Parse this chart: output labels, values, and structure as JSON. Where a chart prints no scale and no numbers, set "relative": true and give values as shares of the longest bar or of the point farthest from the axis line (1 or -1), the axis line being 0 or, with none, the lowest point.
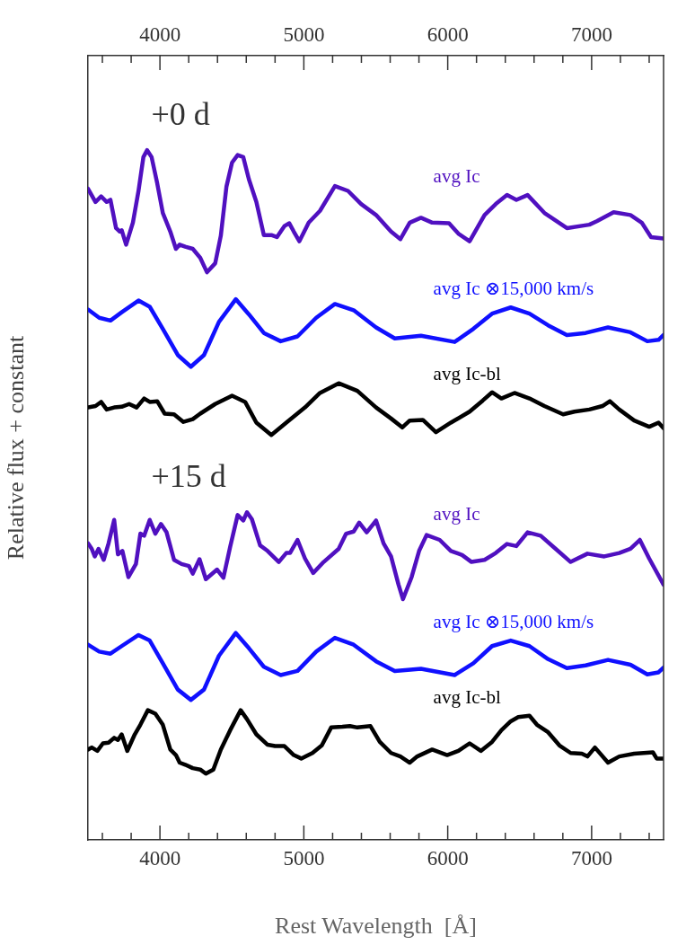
{
  "chart_data": {
    "type": "line",
    "relative": true,
    "xlabel": "Rest Wavelength  [Å]",
    "ylabel": "Relative flux + constant",
    "xlim": [
      3500,
      7500
    ],
    "xticks": [
      {
        "value": 3600,
        "label": null
      },
      {
        "value": 3800,
        "label": null
      },
      4000,
      {
        "value": 4200,
        "label": null
      },
      {
        "value": 4400,
        "label": null
      },
      {
        "value": 4600,
        "label": null
      },
      {
        "value": 4800,
        "label": null
      },
      5000,
      {
        "value": 5200,
        "label": null
      },
      {
        "value": 5400,
        "label": null
      },
      {
        "value": 5600,
        "label": null
      },
      {
        "value": 5800,
        "label": null
      },
      6000,
      {
        "value": 6200,
        "label": null
      },
      {
        "value": 6400,
        "label": null
      },
      {
        "value": 6600,
        "label": null
      },
      {
        "value": 6800,
        "label": null
      },
      7000,
      {
        "value": 7200,
        "label": null
      },
      {
        "value": 7400,
        "label": null
      }
    ],
    "x2lim": [
      3500,
      7500
    ],
    "x2ticks": [
      {
        "value": 3600,
        "label": null
      },
      {
        "value": 3800,
        "label": null
      },
      4000,
      {
        "value": 4200,
        "label": null
      },
      {
        "value": 4400,
        "label": null
      },
      {
        "value": 4600,
        "label": null
      },
      {
        "value": 4800,
        "label": null
      },
      5000,
      {
        "value": 5200,
        "label": null
      },
      {
        "value": 5400,
        "label": null
      },
      {
        "value": 5600,
        "label": null
      },
      {
        "value": 5800,
        "label": null
      },
      6000,
      {
        "value": 6200,
        "label": null
      },
      {
        "value": 6400,
        "label": null
      },
      {
        "value": 6600,
        "label": null
      },
      {
        "value": 6800,
        "label": null
      },
      7000,
      {
        "value": 7200,
        "label": null
      },
      {
        "value": 7400,
        "label": null
      }
    ],
    "annotations": [
      "+0 d",
      "+15 d"
    ],
    "series": [
      {
        "name": "avg Ic",
        "color": "#5010c0",
        "x": [
          3500,
          3552,
          3591,
          3630,
          3656,
          3695,
          3721,
          3734,
          3765,
          3812,
          3851,
          3885,
          3911,
          3942,
          3981,
          4020,
          4072,
          4111,
          4137,
          4176,
          4228,
          4280,
          4327,
          4384,
          4423,
          4462,
          4501,
          4540,
          4579,
          4618,
          4670,
          4722,
          4774,
          4813,
          4865,
          4899,
          4930,
          4969,
          5034,
          5112,
          5216,
          5307,
          5398,
          5502,
          5606,
          5671,
          5736,
          5814,
          5892,
          6009,
          6074,
          6152,
          6256,
          6334,
          6412,
          6477,
          6555,
          6672,
          6828,
          6984,
          7036,
          7153,
          7270,
          7348,
          7413,
          7500
        ],
        "values": [
          0.944,
          0.925,
          0.933,
          0.925,
          0.928,
          0.887,
          0.882,
          0.884,
          0.863,
          0.895,
          0.941,
          0.99,
          1.0,
          0.99,
          0.952,
          0.909,
          0.882,
          0.857,
          0.863,
          0.86,
          0.857,
          0.844,
          0.823,
          0.836,
          0.876,
          0.947,
          0.982,
          0.993,
          0.99,
          0.958,
          0.925,
          0.877,
          0.877,
          0.874,
          0.89,
          0.894,
          0.882,
          0.868,
          0.895,
          0.912,
          0.948,
          0.941,
          0.922,
          0.906,
          0.882,
          0.871,
          0.895,
          0.902,
          0.895,
          0.894,
          0.879,
          0.868,
          0.906,
          0.922,
          0.935,
          0.928,
          0.935,
          0.909,
          0.887,
          0.892,
          0.897,
          0.91,
          0.906,
          0.895,
          0.874,
          0.872
        ]
      },
      {
        "name": "avg Ic ⊗15,000 km/s",
        "color": "#1010ff",
        "x": [
          3500,
          3578,
          3656,
          3734,
          3851,
          3929,
          4020,
          4124,
          4215,
          4306,
          4410,
          4527,
          4618,
          4722,
          4839,
          4956,
          5086,
          5216,
          5346,
          5502,
          5632,
          5814,
          6048,
          6178,
          6308,
          6438,
          6568,
          6698,
          6828,
          6958,
          7114,
          7270,
          7387,
          7465,
          7500
        ],
        "values": [
          0.769,
          0.757,
          0.753,
          0.765,
          0.782,
          0.773,
          0.741,
          0.703,
          0.686,
          0.703,
          0.751,
          0.784,
          0.762,
          0.735,
          0.723,
          0.73,
          0.757,
          0.777,
          0.768,
          0.743,
          0.727,
          0.731,
          0.722,
          0.741,
          0.763,
          0.772,
          0.763,
          0.746,
          0.732,
          0.735,
          0.743,
          0.736,
          0.723,
          0.725,
          0.732
        ]
      },
      {
        "name": "avg Ic-bl",
        "color": "#000000",
        "x": [
          3500,
          3552,
          3591,
          3630,
          3682,
          3734,
          3786,
          3838,
          3890,
          3929,
          3981,
          4033,
          4098,
          4163,
          4228,
          4280,
          4384,
          4501,
          4592,
          4670,
          4774,
          4878,
          5008,
          5112,
          5242,
          5372,
          5502,
          5606,
          5684,
          5736,
          5827,
          5918,
          6022,
          6152,
          6243,
          6308,
          6373,
          6464,
          6568,
          6672,
          6802,
          6880,
          6984,
          7075,
          7127,
          7192,
          7296,
          7400,
          7465,
          7500
        ],
        "values": [
          0.627,
          0.629,
          0.635,
          0.624,
          0.627,
          0.628,
          0.632,
          0.627,
          0.64,
          0.635,
          0.636,
          0.618,
          0.617,
          0.606,
          0.61,
          0.618,
          0.632,
          0.644,
          0.635,
          0.605,
          0.587,
          0.605,
          0.627,
          0.648,
          0.662,
          0.651,
          0.627,
          0.611,
          0.598,
          0.608,
          0.609,
          0.591,
          0.605,
          0.621,
          0.637,
          0.649,
          0.64,
          0.648,
          0.64,
          0.629,
          0.617,
          0.621,
          0.624,
          0.629,
          0.636,
          0.624,
          0.608,
          0.599,
          0.605,
          0.597
        ]
      },
      {
        "name": "avg Ic",
        "color": "#5010c0",
        "x": [
          3500,
          3526,
          3547,
          3573,
          3591,
          3609,
          3643,
          3682,
          3708,
          3739,
          3781,
          3833,
          3864,
          3890,
          3929,
          3968,
          4007,
          4046,
          4098,
          4150,
          4202,
          4228,
          4275,
          4319,
          4397,
          4441,
          4488,
          4540,
          4579,
          4605,
          4639,
          4696,
          4748,
          4826,
          4878,
          4904,
          4956,
          5008,
          5065,
          5138,
          5242,
          5294,
          5346,
          5385,
          5437,
          5502,
          5554,
          5606,
          5658,
          5689,
          5749,
          5801,
          5853,
          5944,
          6022,
          6100,
          6165,
          6256,
          6334,
          6412,
          6477,
          6555,
          6646,
          6750,
          6854,
          6971,
          7088,
          7192,
          7270,
          7335,
          7400,
          7500
        ],
        "values": [
          0.43,
          0.422,
          0.411,
          0.422,
          0.414,
          0.406,
          0.43,
          0.464,
          0.414,
          0.419,
          0.381,
          0.4,
          0.444,
          0.441,
          0.464,
          0.444,
          0.458,
          0.446,
          0.406,
          0.4,
          0.397,
          0.386,
          0.407,
          0.378,
          0.392,
          0.38,
          0.425,
          0.471,
          0.463,
          0.475,
          0.465,
          0.427,
          0.419,
          0.403,
          0.416,
          0.416,
          0.435,
          0.408,
          0.387,
          0.403,
          0.422,
          0.444,
          0.447,
          0.46,
          0.446,
          0.463,
          0.43,
          0.411,
          0.37,
          0.349,
          0.381,
          0.419,
          0.442,
          0.435,
          0.419,
          0.413,
          0.403,
          0.406,
          0.416,
          0.429,
          0.426,
          0.446,
          0.441,
          0.422,
          0.403,
          0.415,
          0.411,
          0.416,
          0.422,
          0.435,
          0.408,
          0.37
        ]
      },
      {
        "name": "avg Ic ⊗15,000 km/s",
        "color": "#1010ff",
        "x": [
          3500,
          3578,
          3656,
          3734,
          3851,
          3929,
          4020,
          4124,
          4215,
          4306,
          4410,
          4527,
          4618,
          4722,
          4839,
          4956,
          5086,
          5216,
          5346,
          5502,
          5632,
          5814,
          6048,
          6178,
          6308,
          6438,
          6568,
          6698,
          6828,
          6958,
          7114,
          7270,
          7387,
          7465,
          7500
        ],
        "values": [
          0.283,
          0.273,
          0.27,
          0.281,
          0.297,
          0.289,
          0.256,
          0.218,
          0.203,
          0.218,
          0.267,
          0.3,
          0.278,
          0.251,
          0.239,
          0.245,
          0.273,
          0.293,
          0.283,
          0.259,
          0.245,
          0.248,
          0.239,
          0.256,
          0.281,
          0.289,
          0.281,
          0.262,
          0.249,
          0.253,
          0.261,
          0.254,
          0.24,
          0.243,
          0.25
        ]
      },
      {
        "name": "avg Ic-bl",
        "color": "#000000",
        "x": [
          3500,
          3526,
          3565,
          3604,
          3643,
          3682,
          3708,
          3734,
          3773,
          3825,
          3864,
          3916,
          3968,
          4020,
          4072,
          4111,
          4137,
          4176,
          4228,
          4280,
          4319,
          4371,
          4423,
          4488,
          4561,
          4605,
          4670,
          4748,
          4800,
          4865,
          4930,
          4982,
          5060,
          5125,
          5190,
          5268,
          5320,
          5372,
          5463,
          5528,
          5606,
          5671,
          5736,
          5788,
          5892,
          5996,
          6074,
          6152,
          6230,
          6308,
          6373,
          6438,
          6490,
          6568,
          6620,
          6698,
          6776,
          6854,
          6932,
          6971,
          7023,
          7114,
          7192,
          7296,
          7426,
          7452,
          7500
        ],
        "values": [
          0.131,
          0.134,
          0.129,
          0.14,
          0.141,
          0.148,
          0.145,
          0.153,
          0.129,
          0.153,
          0.167,
          0.188,
          0.183,
          0.167,
          0.131,
          0.123,
          0.112,
          0.109,
          0.104,
          0.102,
          0.096,
          0.102,
          0.131,
          0.159,
          0.188,
          0.175,
          0.153,
          0.138,
          0.136,
          0.136,
          0.123,
          0.118,
          0.126,
          0.137,
          0.163,
          0.164,
          0.165,
          0.163,
          0.165,
          0.142,
          0.126,
          0.121,
          0.112,
          0.121,
          0.131,
          0.123,
          0.129,
          0.14,
          0.129,
          0.142,
          0.159,
          0.172,
          0.178,
          0.18,
          0.167,
          0.156,
          0.137,
          0.126,
          0.125,
          0.121,
          0.134,
          0.112,
          0.121,
          0.125,
          0.127,
          0.118,
          0.118
        ]
      }
    ]
  }
}
